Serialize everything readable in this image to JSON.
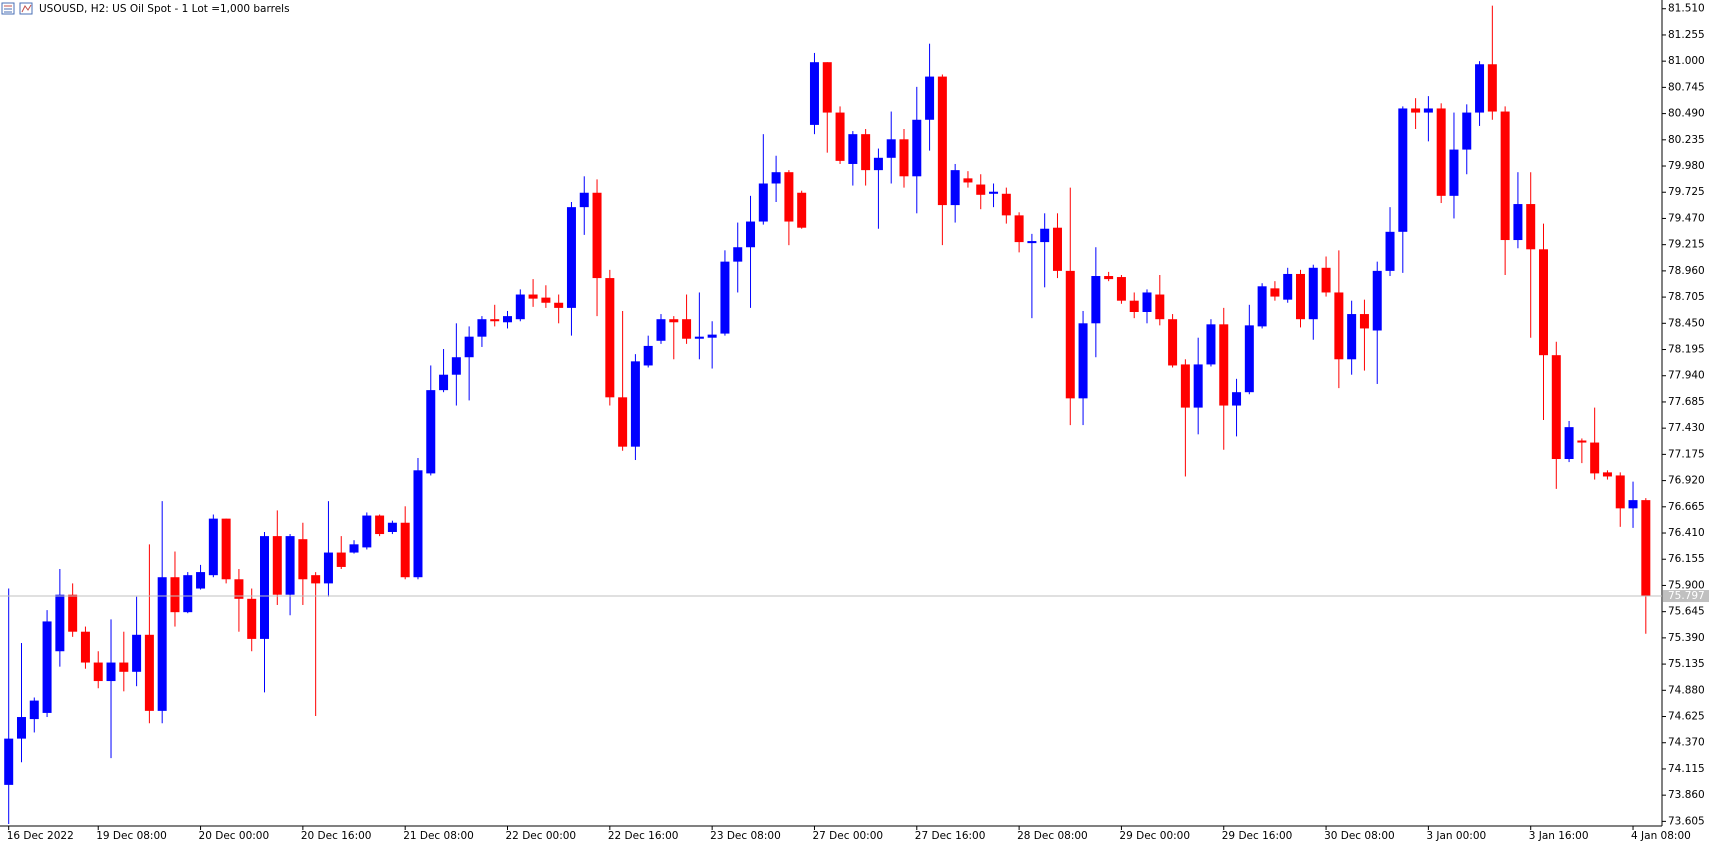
{
  "chart_data": {
    "type": "candlestick",
    "title": "USOUSD, H2:  US Oil Spot - 1 Lot =1,000 barrels",
    "up_color": "#0000ff",
    "down_color": "#ff0000",
    "categories": [
      "16 Dec 2022",
      null,
      null,
      null,
      null,
      null,
      null,
      "19 Dec 08:00",
      null,
      null,
      null,
      null,
      null,
      null,
      null,
      "20 Dec 00:00",
      null,
      null,
      null,
      null,
      null,
      null,
      null,
      "20 Dec 16:00",
      null,
      null,
      null,
      null,
      null,
      null,
      null,
      "21 Dec 08:00",
      null,
      null,
      null,
      null,
      null,
      null,
      null,
      "22 Dec 00:00",
      null,
      null,
      null,
      null,
      null,
      null,
      null,
      "22 Dec 16:00",
      null,
      null,
      null,
      null,
      null,
      null,
      null,
      "23 Dec 08:00",
      null,
      null,
      null,
      null,
      null,
      null,
      null,
      "27 Dec 00:00",
      null,
      null,
      null,
      null,
      null,
      null,
      null,
      "27 Dec 16:00",
      null,
      null,
      null,
      null,
      null,
      null,
      null,
      "28 Dec 08:00",
      null,
      null,
      null,
      null,
      null,
      null,
      null,
      "29 Dec 00:00",
      null,
      null,
      null,
      null,
      null,
      null,
      null,
      "29 Dec 16:00",
      null,
      null,
      null,
      null,
      null,
      null,
      null,
      "30 Dec 08:00",
      null,
      null,
      null,
      null,
      null,
      null,
      null,
      "3 Jan 00:00",
      null,
      null,
      null,
      null,
      null,
      null,
      null,
      "3 Jan 16:00",
      null,
      null,
      null,
      null,
      null,
      null,
      null,
      "4 Jan 08:00",
      null
    ],
    "open": [
      73.96,
      74.41,
      74.6,
      74.66,
      75.26,
      75.81,
      75.45,
      75.15,
      74.97,
      75.15,
      75.06,
      75.42,
      74.68,
      75.98,
      75.64,
      75.87,
      76.0,
      76.55,
      75.96,
      75.77,
      75.38,
      76.38,
      75.81,
      76.35,
      76.0,
      75.92,
      76.22,
      76.22,
      76.27,
      76.58,
      76.42,
      76.51,
      75.98,
      76.99,
      77.8,
      77.95,
      78.12,
      78.32,
      78.49,
      78.46,
      78.49,
      78.73,
      78.7,
      78.65,
      78.6,
      79.58,
      79.72,
      78.89,
      77.73,
      77.25,
      78.04,
      78.28,
      78.49,
      78.49,
      78.3,
      78.31,
      78.35,
      79.05,
      79.19,
      79.44,
      79.81,
      79.92,
      79.72,
      80.38,
      80.99,
      80.5,
      80.0,
      80.29,
      79.94,
      80.06,
      80.24,
      79.88,
      80.43,
      80.85,
      79.6,
      79.86,
      79.8,
      79.71,
      79.71,
      79.5,
      79.23,
      79.24,
      79.38,
      78.96,
      77.72,
      78.45,
      78.91,
      78.9,
      78.67,
      78.56,
      78.73,
      78.49,
      78.05,
      77.63,
      78.05,
      78.44,
      77.65,
      77.78,
      78.42,
      78.79,
      78.68,
      78.93,
      78.49,
      78.99,
      78.75,
      78.1,
      78.54,
      78.38,
      78.96,
      79.34,
      80.54,
      80.5,
      80.54,
      79.69,
      80.14,
      80.5,
      80.97,
      80.51,
      79.26,
      79.61,
      79.17,
      78.14,
      77.13,
      77.31,
      77.29,
      77.0,
      76.97,
      76.65,
      76.73
    ],
    "high": [
      75.87,
      75.34,
      74.81,
      75.66,
      76.06,
      75.92,
      75.5,
      75.26,
      75.57,
      75.45,
      75.79,
      76.3,
      76.72,
      76.23,
      76.03,
      76.1,
      76.59,
      76.55,
      76.06,
      75.87,
      76.42,
      76.63,
      76.4,
      76.51,
      76.03,
      76.72,
      76.38,
      76.34,
      76.61,
      76.59,
      76.53,
      76.67,
      77.14,
      78.04,
      78.2,
      78.45,
      78.42,
      78.52,
      78.63,
      78.57,
      78.78,
      78.88,
      78.82,
      78.73,
      79.63,
      79.88,
      79.85,
      78.97,
      78.57,
      78.15,
      78.33,
      78.54,
      78.52,
      78.73,
      78.75,
      78.47,
      79.16,
      79.43,
      79.69,
      80.29,
      80.08,
      79.94,
      79.74,
      81.08,
      80.99,
      80.56,
      80.32,
      80.34,
      80.15,
      80.51,
      80.34,
      80.75,
      81.17,
      80.87,
      80.0,
      79.93,
      79.9,
      79.81,
      79.77,
      79.53,
      79.32,
      79.52,
      79.52,
      79.77,
      78.57,
      79.19,
      78.95,
      78.92,
      78.75,
      78.78,
      78.92,
      78.54,
      78.1,
      78.31,
      78.49,
      78.6,
      77.91,
      78.63,
      78.84,
      78.86,
      78.99,
      78.97,
      79.02,
      79.1,
      79.16,
      78.67,
      78.68,
      79.05,
      79.58,
      80.56,
      80.64,
      80.66,
      80.59,
      80.5,
      80.58,
      81.0,
      81.54,
      80.56,
      79.92,
      79.92,
      79.42,
      78.27,
      77.5,
      77.33,
      77.63,
      77.02,
      77.0,
      76.91,
      76.75
    ],
    "low": [
      73.58,
      74.18,
      74.47,
      74.62,
      75.11,
      75.4,
      75.09,
      74.9,
      74.22,
      74.87,
      74.92,
      74.56,
      74.56,
      75.5,
      75.63,
      75.86,
      75.98,
      75.92,
      75.45,
      75.26,
      74.86,
      75.71,
      75.61,
      75.71,
      74.63,
      75.79,
      76.06,
      76.21,
      76.25,
      76.38,
      76.4,
      75.96,
      75.96,
      76.97,
      77.78,
      77.65,
      77.7,
      78.22,
      78.42,
      78.4,
      78.47,
      78.61,
      78.6,
      78.45,
      78.33,
      79.31,
      78.52,
      77.65,
      77.21,
      77.12,
      78.02,
      78.25,
      78.1,
      78.25,
      78.1,
      78.01,
      78.33,
      78.75,
      78.6,
      79.41,
      79.63,
      79.21,
      79.37,
      80.29,
      80.11,
      80.0,
      79.79,
      79.79,
      79.37,
      79.81,
      79.77,
      79.52,
      80.13,
      79.21,
      79.43,
      79.77,
      79.56,
      79.58,
      79.42,
      79.14,
      78.5,
      78.8,
      78.89,
      77.46,
      77.46,
      78.12,
      78.86,
      78.64,
      78.5,
      78.45,
      78.43,
      78.02,
      76.96,
      77.37,
      78.03,
      77.22,
      77.35,
      77.76,
      78.4,
      78.67,
      78.65,
      78.41,
      78.29,
      78.71,
      77.82,
      77.95,
      77.99,
      77.86,
      78.91,
      78.94,
      80.34,
      80.22,
      79.62,
      79.47,
      79.9,
      80.37,
      80.43,
      78.92,
      79.18,
      78.31,
      77.51,
      76.84,
      77.1,
      77.09,
      76.93,
      76.93,
      76.47,
      76.46,
      75.43
    ],
    "close": [
      74.41,
      74.62,
      74.78,
      75.55,
      75.81,
      75.45,
      75.15,
      74.97,
      75.15,
      75.06,
      75.42,
      74.68,
      75.98,
      75.64,
      76.0,
      76.03,
      76.55,
      75.96,
      75.77,
      75.38,
      76.38,
      75.81,
      76.38,
      75.96,
      75.92,
      76.22,
      76.08,
      76.3,
      76.58,
      76.4,
      76.51,
      75.98,
      77.02,
      77.8,
      77.95,
      78.12,
      78.32,
      78.49,
      78.47,
      78.52,
      78.73,
      78.69,
      78.65,
      78.6,
      79.58,
      79.72,
      78.89,
      77.73,
      77.25,
      78.08,
      78.23,
      78.49,
      78.46,
      78.3,
      78.32,
      78.34,
      79.05,
      79.19,
      79.44,
      79.81,
      79.92,
      79.44,
      79.38,
      80.99,
      80.5,
      80.03,
      80.29,
      79.94,
      80.06,
      80.24,
      79.88,
      80.43,
      80.85,
      79.6,
      79.94,
      79.82,
      79.7,
      79.73,
      79.5,
      79.24,
      79.25,
      79.37,
      78.96,
      77.72,
      78.45,
      78.91,
      78.88,
      78.67,
      78.56,
      78.75,
      78.49,
      78.04,
      77.63,
      78.05,
      78.44,
      77.65,
      77.78,
      78.43,
      78.81,
      78.71,
      78.93,
      78.49,
      78.99,
      78.75,
      78.1,
      78.54,
      78.4,
      78.96,
      79.34,
      80.54,
      80.5,
      80.54,
      79.69,
      80.14,
      80.5,
      80.97,
      80.51,
      79.26,
      79.61,
      79.17,
      78.14,
      77.13,
      77.44,
      77.29,
      76.99,
      76.96,
      76.65,
      76.73,
      75.797
    ],
    "ylim": [
      73.56,
      81.595
    ],
    "yticks": [
      {
        "value": 81.51,
        "label": "81.510"
      },
      81.255,
      {
        "value": 81.0,
        "label": "81.000"
      },
      80.745,
      {
        "value": 80.49,
        "label": "80.490"
      },
      80.235,
      {
        "value": 79.98,
        "label": "79.980"
      },
      79.725,
      {
        "value": 79.47,
        "label": "79.470"
      },
      79.215,
      {
        "value": 78.96,
        "label": "78.960"
      },
      78.705,
      {
        "value": 78.45,
        "label": "78.450"
      },
      78.195,
      {
        "value": 77.94,
        "label": "77.940"
      },
      77.685,
      {
        "value": 77.43,
        "label": "77.430"
      },
      77.175,
      {
        "value": 76.92,
        "label": "76.920"
      },
      76.665,
      {
        "value": 76.41,
        "label": "76.410"
      },
      76.155,
      {
        "value": 75.9,
        "label": "75.900"
      },
      75.645,
      {
        "value": 75.39,
        "label": "75.390"
      },
      75.135,
      {
        "value": 74.88,
        "label": "74.880"
      },
      74.625,
      {
        "value": 74.37,
        "label": "74.370"
      },
      74.115,
      {
        "value": 73.86,
        "label": "73.860"
      },
      73.605
    ],
    "grid": false
  }
}
